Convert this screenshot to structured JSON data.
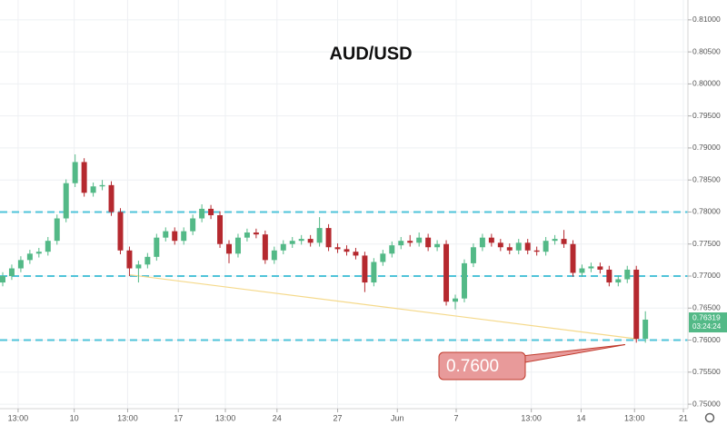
{
  "chart_data": {
    "type": "candlestick",
    "title": "AUD/USD",
    "x": [
      0,
      1,
      2,
      3,
      4,
      5,
      6,
      7,
      8,
      9,
      10,
      11,
      12,
      13,
      14,
      15,
      16,
      17,
      18,
      19,
      20,
      21,
      22,
      23,
      24,
      25,
      26,
      27,
      28,
      29,
      30,
      31,
      32,
      33,
      34,
      35,
      36,
      37,
      38,
      39,
      40,
      41,
      42,
      43,
      44,
      45,
      46,
      47,
      48,
      49,
      50,
      51,
      52,
      53,
      54,
      55,
      56,
      57,
      58,
      59,
      60,
      61,
      62,
      63,
      64,
      65,
      66,
      67,
      68,
      69,
      70,
      71
    ],
    "open": [
      0.769,
      0.77,
      0.7712,
      0.7725,
      0.7735,
      0.7738,
      0.7755,
      0.779,
      0.7845,
      0.7878,
      0.783,
      0.784,
      0.7842,
      0.78,
      0.774,
      0.7712,
      0.7718,
      0.773,
      0.776,
      0.777,
      0.7755,
      0.777,
      0.779,
      0.7805,
      0.7795,
      0.775,
      0.7735,
      0.776,
      0.7768,
      0.7765,
      0.7725,
      0.774,
      0.775,
      0.7755,
      0.7758,
      0.7752,
      0.7775,
      0.7745,
      0.7742,
      0.7738,
      0.7732,
      0.769,
      0.7722,
      0.7735,
      0.7748,
      0.7755,
      0.7752,
      0.776,
      0.7745,
      0.775,
      0.766,
      0.7665,
      0.772,
      0.7745,
      0.776,
      0.7752,
      0.7745,
      0.774,
      0.7752,
      0.774,
      0.7738,
      0.7755,
      0.7758,
      0.775,
      0.7705,
      0.7712,
      0.7715,
      0.771,
      0.769,
      0.7695,
      0.771,
      0.7602
    ],
    "high": [
      0.7706,
      0.7718,
      0.7731,
      0.7741,
      0.7744,
      0.7761,
      0.7796,
      0.7851,
      0.789,
      0.7884,
      0.7846,
      0.785,
      0.7848,
      0.7806,
      0.7746,
      0.7724,
      0.7736,
      0.7766,
      0.7776,
      0.7776,
      0.7776,
      0.7796,
      0.7812,
      0.7811,
      0.7801,
      0.7756,
      0.7766,
      0.7774,
      0.7774,
      0.7771,
      0.7746,
      0.7756,
      0.7761,
      0.7764,
      0.7764,
      0.7792,
      0.7781,
      0.7751,
      0.7748,
      0.7744,
      0.7738,
      0.7728,
      0.7741,
      0.7754,
      0.7761,
      0.7764,
      0.7768,
      0.7766,
      0.7756,
      0.7756,
      0.7671,
      0.7726,
      0.7751,
      0.7766,
      0.7766,
      0.7758,
      0.7751,
      0.7758,
      0.7758,
      0.7746,
      0.7761,
      0.7764,
      0.7772,
      0.7756,
      0.7718,
      0.7721,
      0.7721,
      0.7716,
      0.7701,
      0.7716,
      0.7716,
      0.7645
    ],
    "low": [
      0.7684,
      0.7694,
      0.7706,
      0.7719,
      0.7729,
      0.7732,
      0.7749,
      0.7784,
      0.7839,
      0.7824,
      0.7824,
      0.7834,
      0.7794,
      0.7734,
      0.77,
      0.769,
      0.7712,
      0.7724,
      0.7754,
      0.7749,
      0.7749,
      0.7764,
      0.7784,
      0.7789,
      0.7744,
      0.772,
      0.7729,
      0.7754,
      0.7759,
      0.7719,
      0.7719,
      0.7734,
      0.7744,
      0.7749,
      0.7746,
      0.7746,
      0.7739,
      0.7736,
      0.7732,
      0.7726,
      0.7675,
      0.7684,
      0.7716,
      0.7729,
      0.7742,
      0.7746,
      0.7746,
      0.7739,
      0.7739,
      0.7654,
      0.7648,
      0.7659,
      0.7714,
      0.7739,
      0.7746,
      0.7739,
      0.7734,
      0.7734,
      0.7734,
      0.7732,
      0.7732,
      0.7749,
      0.7744,
      0.7699,
      0.7699,
      0.7706,
      0.7704,
      0.7684,
      0.7684,
      0.7689,
      0.7596,
      0.7596
    ],
    "close": [
      0.77,
      0.7712,
      0.7725,
      0.7735,
      0.7738,
      0.7755,
      0.779,
      0.7845,
      0.7878,
      0.783,
      0.784,
      0.7842,
      0.78,
      0.774,
      0.7712,
      0.7718,
      0.773,
      0.776,
      0.777,
      0.7755,
      0.777,
      0.779,
      0.7805,
      0.7795,
      0.775,
      0.7735,
      0.776,
      0.7768,
      0.7765,
      0.7725,
      0.774,
      0.775,
      0.7755,
      0.7758,
      0.7752,
      0.7775,
      0.7745,
      0.7742,
      0.7738,
      0.7732,
      0.769,
      0.7722,
      0.7735,
      0.7748,
      0.7755,
      0.7752,
      0.776,
      0.7745,
      0.775,
      0.766,
      0.7665,
      0.772,
      0.7745,
      0.776,
      0.7752,
      0.7745,
      0.774,
      0.7752,
      0.774,
      0.7738,
      0.7755,
      0.7758,
      0.775,
      0.7705,
      0.7712,
      0.7715,
      0.771,
      0.769,
      0.7695,
      0.771,
      0.7602,
      0.7632
    ],
    "up_color": "#53b987",
    "down_color": "#b5292f",
    "xlim": [
      -0.3,
      75.7
    ],
    "xticks": [
      {
        "value": 1.7,
        "label": "13:00"
      },
      {
        "value": 7.9,
        "label": "10"
      },
      {
        "value": 13.8,
        "label": "13:00"
      },
      {
        "value": 19.4,
        "label": "17"
      },
      {
        "value": 24.6,
        "label": "13:00"
      },
      {
        "value": 30.3,
        "label": "24"
      },
      {
        "value": 37.0,
        "label": "27"
      },
      {
        "value": 43.6,
        "label": "Jun"
      },
      {
        "value": 50.1,
        "label": "7"
      },
      {
        "value": 58.4,
        "label": "13:00"
      },
      {
        "value": 63.9,
        "label": "14"
      },
      {
        "value": 69.8,
        "label": "13:00"
      },
      {
        "value": 75.2,
        "label": "21"
      }
    ],
    "ylim": [
      0.7493,
      0.8131
    ],
    "yticks": [
      {
        "value": 0.75,
        "label": "0.75000"
      },
      {
        "value": 0.755,
        "label": "0.75500"
      },
      {
        "value": 0.76,
        "label": "0.76000"
      },
      {
        "value": 0.765,
        "label": "0.76500"
      },
      {
        "value": 0.77,
        "label": "0.77000"
      },
      {
        "value": 0.775,
        "label": "0.77500"
      },
      {
        "value": 0.78,
        "label": "0.78000"
      },
      {
        "value": 0.785,
        "label": "0.78500"
      },
      {
        "value": 0.79,
        "label": "0.79000"
      },
      {
        "value": 0.795,
        "label": "0.79500"
      },
      {
        "value": 0.8,
        "label": "0.80000"
      },
      {
        "value": 0.805,
        "label": "0.80500"
      },
      {
        "value": 0.81,
        "label": "0.81000"
      }
    ],
    "grid": true,
    "levels": [
      0.78,
      0.77,
      0.76
    ],
    "level_color": "#4fc3d9",
    "trendline": {
      "x": [
        14,
        70
      ],
      "y": [
        0.7702,
        0.7602
      ],
      "color": "#f5d98a"
    },
    "annotation": {
      "value": 0.76,
      "label": "0.7600"
    },
    "last_price": {
      "value": 0.76319,
      "label": "0.76319"
    },
    "countdown": "03:24:24"
  }
}
